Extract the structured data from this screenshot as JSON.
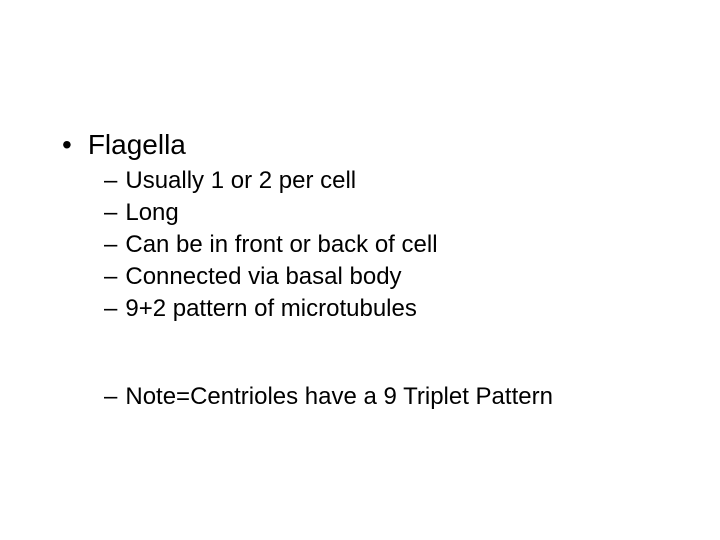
{
  "slide": {
    "background_color": "#ffffff",
    "text_color": "#000000",
    "font_family": "Arial",
    "level1_fontsize": 28,
    "level2_fontsize": 24,
    "bullet_char": "•",
    "dash_char": "–",
    "items": [
      {
        "text": "Flagella",
        "subitems": [
          {
            "text": "Usually 1 or 2 per cell"
          },
          {
            "text": "Long"
          },
          {
            "text": "Can be in front or back of cell"
          },
          {
            "text": "Connected via basal body"
          },
          {
            "text": "9+2 pattern of microtubules"
          }
        ],
        "after_gap_subitems": [
          {
            "text": "Note=Centrioles have a 9 Triplet Pattern"
          }
        ]
      }
    ]
  }
}
